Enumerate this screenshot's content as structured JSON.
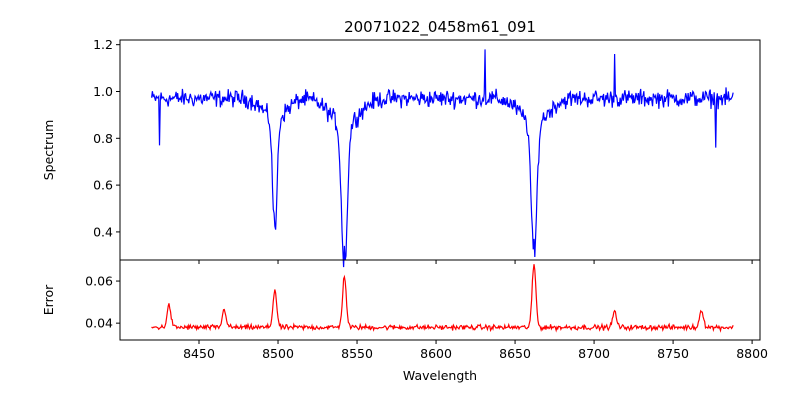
{
  "chart_data": [
    {
      "type": "line",
      "title": "20071022_0458m61_091",
      "xlabel": "",
      "ylabel": "Spectrum",
      "xlim": [
        8400,
        8805
      ],
      "ylim": [
        0.28,
        1.22
      ],
      "x_ticks": [
        8450,
        8500,
        8550,
        8600,
        8650,
        8700,
        8750,
        8800
      ],
      "y_ticks": [
        0.4,
        0.6,
        0.8,
        1.0,
        1.2
      ],
      "y_tick_labels": [
        "0.4",
        "0.6",
        "0.8",
        "1.0",
        "1.2"
      ],
      "series": [
        {
          "color": "#0000ff",
          "x_range": [
            8420,
            8788
          ],
          "x_step": 0.5,
          "continuum": 0.97,
          "noise_amplitude": 0.055,
          "absorption_lines": [
            {
              "center": 8498,
              "depth": 0.49,
              "width": 1.4
            },
            {
              "center": 8542,
              "depth": 0.62,
              "width": 1.8
            },
            {
              "center": 8662,
              "depth": 0.59,
              "width": 1.7
            }
          ],
          "features": [
            [
              8425,
              0.77
            ],
            [
              8497.5,
              0.48
            ],
            [
              8542,
              0.34
            ],
            [
              8662,
              0.37
            ],
            [
              8631,
              1.18
            ],
            [
              8713,
              1.16
            ],
            [
              8777,
              0.76
            ]
          ]
        }
      ]
    },
    {
      "type": "line",
      "title": "",
      "xlabel": "Wavelength",
      "ylabel": "Error",
      "xlim": [
        8400,
        8805
      ],
      "ylim": [
        0.032,
        0.07
      ],
      "x_ticks": [
        8450,
        8500,
        8550,
        8600,
        8650,
        8700,
        8750,
        8800
      ],
      "y_ticks": [
        0.04,
        0.06
      ],
      "y_tick_labels": [
        "0.04",
        "0.06"
      ],
      "series": [
        {
          "color": "#ff0000",
          "x_range": [
            8420,
            8788
          ],
          "x_step": 0.5,
          "baseline": 0.038,
          "noise_amplitude": 0.0018,
          "peaks": [
            {
              "center": 8431,
              "height": 0.0105
            },
            {
              "center": 8466,
              "height": 0.0085
            },
            {
              "center": 8498,
              "height": 0.0175
            },
            {
              "center": 8542,
              "height": 0.024
            },
            {
              "center": 8662,
              "height": 0.0295
            },
            {
              "center": 8713,
              "height": 0.0075
            },
            {
              "center": 8768,
              "height": 0.0085
            }
          ],
          "features": [
            [
              8498,
              0.056
            ],
            [
              8542,
              0.062
            ],
            [
              8662,
              0.068
            ]
          ]
        }
      ]
    }
  ],
  "x_tick_labels": [
    "8450",
    "8500",
    "8550",
    "8600",
    "8650",
    "8700",
    "8750",
    "8800"
  ]
}
